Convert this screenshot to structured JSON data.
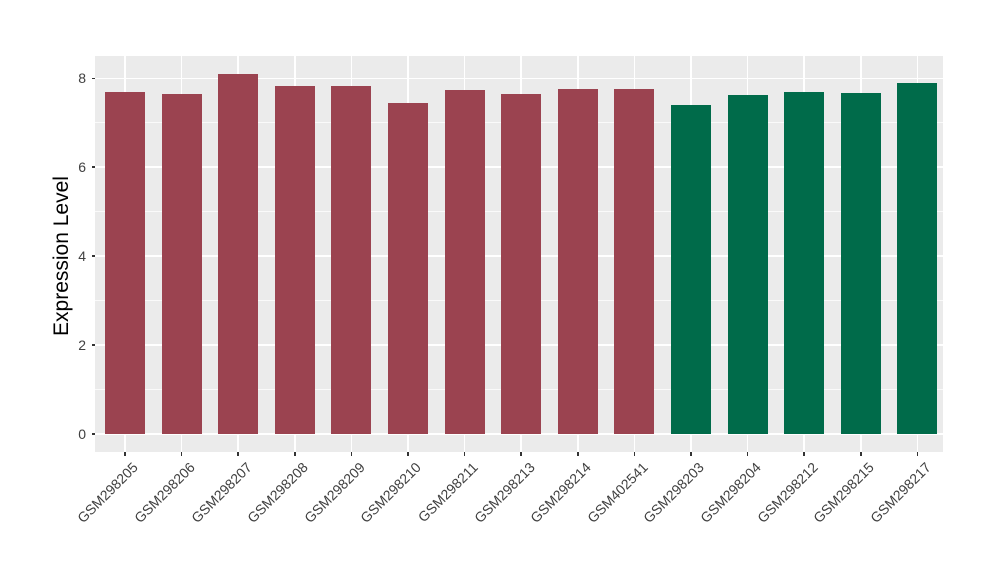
{
  "figure": {
    "background": "#FFFFFF",
    "title": ""
  },
  "chart_data": {
    "type": "bar",
    "title": "",
    "xlabel": "",
    "ylabel": "Expression Level",
    "categories": [
      "GSM298205",
      "GSM298206",
      "GSM298207",
      "GSM298208",
      "GSM298209",
      "GSM298210",
      "GSM298211",
      "GSM298213",
      "GSM298214",
      "GSM402541",
      "GSM298203",
      "GSM298204",
      "GSM298212",
      "GSM298215",
      "GSM298217"
    ],
    "values": [
      7.7,
      7.65,
      8.09,
      7.83,
      7.83,
      7.44,
      7.73,
      7.64,
      7.76,
      7.77,
      7.41,
      7.62,
      7.7,
      7.66,
      7.9
    ],
    "bar_groups": [
      "maroon",
      "maroon",
      "maroon",
      "maroon",
      "maroon",
      "maroon",
      "maroon",
      "maroon",
      "maroon",
      "maroon",
      "green",
      "green",
      "green",
      "green",
      "green"
    ],
    "group_colors": {
      "maroon": "#9B4350",
      "green": "#006B4A"
    },
    "yticks": [
      0,
      2,
      4,
      6,
      8
    ],
    "yticks_minor": [
      1,
      3,
      5,
      7
    ],
    "ylim": [
      0,
      8.5
    ],
    "x_tick_rotation_deg": 45,
    "legend_position": "none",
    "grid": "horizontal major+minor and vertical major, white on gray panel",
    "panel_background": "#EBEBEB",
    "gridline_color": "#FFFFFF",
    "axis_text_color": "#404040",
    "tick_color": "#333333"
  }
}
